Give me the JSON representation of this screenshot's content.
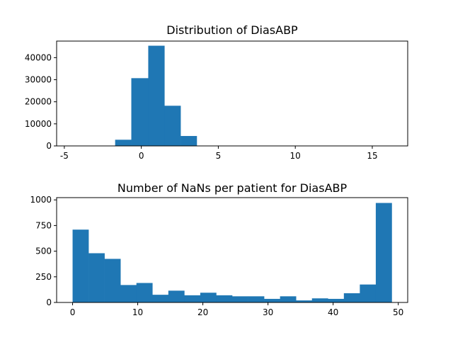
{
  "chart_data": [
    {
      "type": "bar",
      "title": "Distribution of DiasABP",
      "xlabel": "",
      "ylabel": "",
      "xlim": [
        -5.5,
        17.3
      ],
      "ylim": [
        0,
        47500
      ],
      "xticks": [
        -5,
        0,
        5,
        10,
        15
      ],
      "yticks": [
        0,
        10000,
        20000,
        30000,
        40000
      ],
      "color": "#1f77b4",
      "bin_edges": [
        -4.9,
        -3.85,
        -2.8,
        -1.7,
        -0.65,
        0.45,
        1.5,
        2.55,
        3.6,
        4.65,
        5.7,
        6.8,
        7.85,
        8.9,
        9.95,
        11.0,
        12.05,
        13.1,
        14.15,
        15.2,
        16.3
      ],
      "values": [
        150,
        50,
        100,
        2800,
        30700,
        45400,
        18200,
        4500,
        150,
        50,
        20,
        10,
        10,
        5,
        5,
        5,
        5,
        5,
        5,
        5
      ]
    },
    {
      "type": "bar",
      "title": "Number of NaNs per patient for DiasABP",
      "xlabel": "",
      "ylabel": "",
      "xlim": [
        -2.45,
        51.45
      ],
      "ylim": [
        0,
        1022
      ],
      "xticks": [
        0,
        10,
        20,
        30,
        40,
        50
      ],
      "yticks": [
        0,
        250,
        500,
        750,
        1000
      ],
      "color": "#1f77b4",
      "bin_edges": [
        0,
        2.45,
        4.9,
        7.35,
        9.8,
        12.25,
        14.7,
        17.15,
        19.6,
        22.05,
        24.5,
        26.95,
        29.4,
        31.85,
        34.3,
        36.75,
        39.2,
        41.65,
        44.1,
        46.55,
        49.0
      ],
      "values": [
        710,
        480,
        425,
        170,
        190,
        75,
        115,
        70,
        95,
        70,
        60,
        60,
        35,
        60,
        20,
        40,
        35,
        90,
        175,
        970
      ]
    }
  ]
}
